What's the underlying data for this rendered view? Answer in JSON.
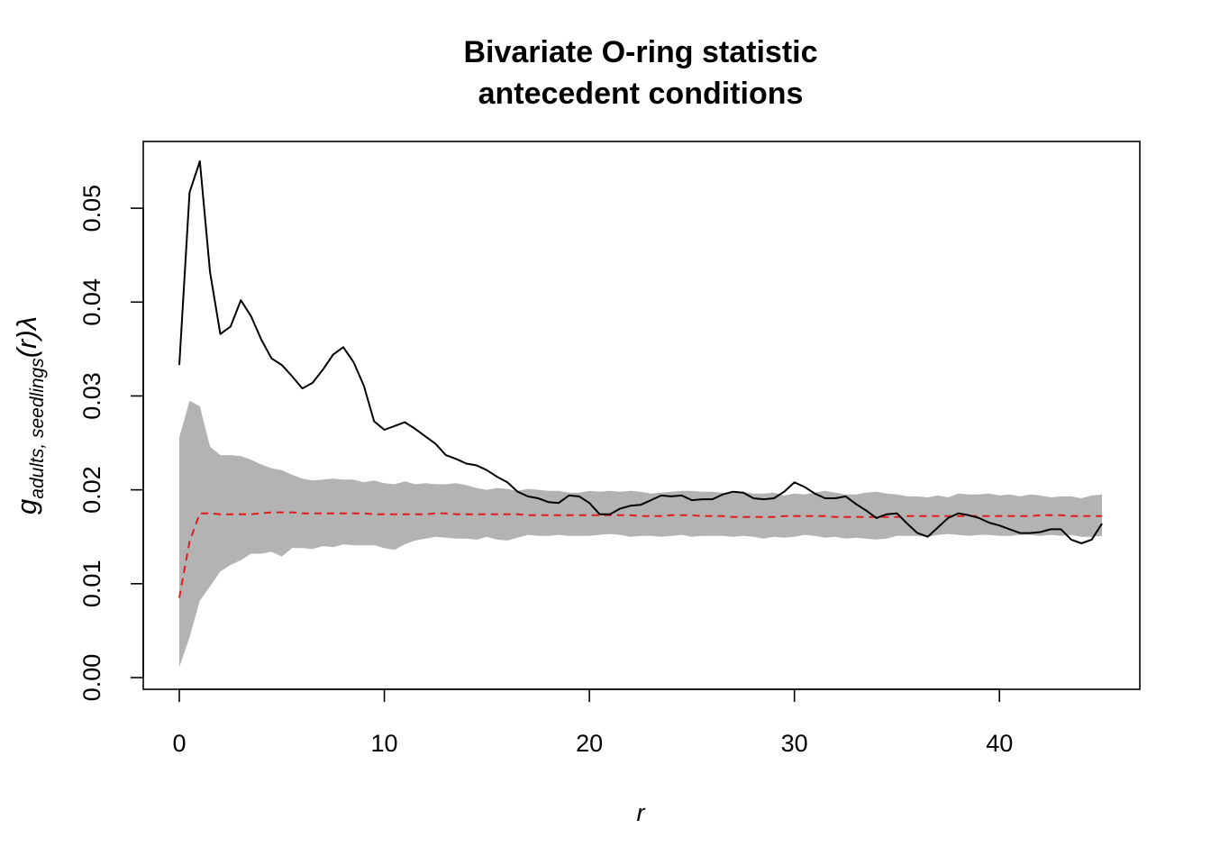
{
  "chart_data": {
    "type": "line",
    "title": [
      "Bivariate O-ring statistic",
      "antecedent conditions"
    ],
    "xlabel": "r",
    "ylabel": {
      "main": "g",
      "subscript": "adults, seedlings",
      "suffix": "(r)λ"
    },
    "xlim": [
      0,
      45
    ],
    "ylim": [
      0,
      0.055
    ],
    "x_ticks": [
      0,
      10,
      20,
      30,
      40
    ],
    "x_tick_labels": [
      "0",
      "10",
      "20",
      "30",
      "40"
    ],
    "y_ticks": [
      0,
      0.01,
      0.02,
      0.03,
      0.04,
      0.05
    ],
    "y_tick_labels": [
      "0.00",
      "0.01",
      "0.02",
      "0.03",
      "0.04",
      "0.05"
    ],
    "grid": false,
    "x": [
      0,
      0.5,
      1,
      1.5,
      2,
      2.5,
      3,
      3.5,
      4,
      4.5,
      5,
      5.5,
      6,
      6.5,
      7,
      7.5,
      8,
      8.5,
      9,
      9.5,
      10,
      10.5,
      11,
      11.5,
      12,
      12.5,
      13,
      13.5,
      14,
      14.5,
      15,
      15.5,
      16,
      16.5,
      17,
      17.5,
      18,
      18.5,
      19,
      19.5,
      20,
      20.5,
      21,
      21.5,
      22,
      22.5,
      23,
      23.5,
      24,
      24.5,
      25,
      25.5,
      26,
      26.5,
      27,
      27.5,
      28,
      28.5,
      29,
      29.5,
      30,
      30.5,
      31,
      31.5,
      32,
      32.5,
      33,
      33.5,
      34,
      34.5,
      35,
      35.5,
      36,
      36.5,
      37,
      37.5,
      38,
      38.5,
      39,
      39.5,
      40,
      40.5,
      41,
      41.5,
      42,
      42.5,
      43,
      43.5,
      44,
      44.5,
      45
    ],
    "series": [
      {
        "role": "observed",
        "color": "#000000",
        "style": "solid",
        "values": [
          0.0333,
          0.0517,
          0.055,
          0.0432,
          0.0366,
          0.0374,
          0.0402,
          0.0385,
          0.036,
          0.034,
          0.0333,
          0.0321,
          0.0308,
          0.0314,
          0.0328,
          0.0344,
          0.0352,
          0.0336,
          0.0311,
          0.0273,
          0.0264,
          0.0268,
          0.0272,
          0.0265,
          0.0257,
          0.0249,
          0.0237,
          0.0233,
          0.0228,
          0.0226,
          0.0221,
          0.0214,
          0.0208,
          0.0198,
          0.0193,
          0.0191,
          0.0187,
          0.0186,
          0.0194,
          0.0193,
          0.0186,
          0.0174,
          0.0174,
          0.018,
          0.0183,
          0.0184,
          0.0189,
          0.0194,
          0.0193,
          0.0194,
          0.0189,
          0.019,
          0.019,
          0.0195,
          0.0198,
          0.0197,
          0.0191,
          0.019,
          0.0191,
          0.0198,
          0.0208,
          0.0203,
          0.0196,
          0.0191,
          0.0191,
          0.0193,
          0.0185,
          0.0178,
          0.017,
          0.0174,
          0.0175,
          0.0164,
          0.0154,
          0.015,
          0.016,
          0.017,
          0.0175,
          0.0173,
          0.017,
          0.0165,
          0.0162,
          0.0158,
          0.0154,
          0.0154,
          0.0155,
          0.0158,
          0.0158,
          0.0147,
          0.0143,
          0.0147,
          0.0164
        ]
      },
      {
        "role": "theoretical",
        "color": "#e41a1c",
        "style": "dashed",
        "values": [
          0.0085,
          0.0145,
          0.0175,
          0.0175,
          0.0174,
          0.0174,
          0.0174,
          0.0174,
          0.0175,
          0.0176,
          0.0176,
          0.0176,
          0.0175,
          0.0175,
          0.0175,
          0.0175,
          0.0175,
          0.0175,
          0.0175,
          0.0174,
          0.0174,
          0.0174,
          0.0174,
          0.0174,
          0.0174,
          0.0175,
          0.0175,
          0.0174,
          0.0174,
          0.0174,
          0.0174,
          0.0174,
          0.0174,
          0.0174,
          0.0173,
          0.0173,
          0.0173,
          0.0173,
          0.0173,
          0.0173,
          0.0173,
          0.0173,
          0.0173,
          0.0173,
          0.0173,
          0.0172,
          0.0172,
          0.0172,
          0.0173,
          0.0173,
          0.0173,
          0.0172,
          0.0172,
          0.0172,
          0.0171,
          0.0171,
          0.0171,
          0.0171,
          0.0171,
          0.0172,
          0.0172,
          0.0172,
          0.0172,
          0.0172,
          0.0171,
          0.0171,
          0.0171,
          0.0171,
          0.0171,
          0.0171,
          0.0171,
          0.0172,
          0.0172,
          0.0172,
          0.0172,
          0.0172,
          0.0172,
          0.0172,
          0.0172,
          0.0172,
          0.0172,
          0.0172,
          0.0172,
          0.0172,
          0.0173,
          0.0173,
          0.0173,
          0.0172,
          0.0172,
          0.0172,
          0.0172
        ]
      }
    ],
    "envelope": {
      "color": "#b3b3b3",
      "upper": [
        0.0256,
        0.0295,
        0.0289,
        0.0246,
        0.0237,
        0.0237,
        0.0236,
        0.0232,
        0.0227,
        0.0223,
        0.0221,
        0.0216,
        0.0212,
        0.021,
        0.0211,
        0.0212,
        0.0211,
        0.0211,
        0.0208,
        0.021,
        0.0207,
        0.0206,
        0.0209,
        0.0206,
        0.0207,
        0.0206,
        0.0206,
        0.0207,
        0.0205,
        0.0202,
        0.02,
        0.0202,
        0.0201,
        0.0199,
        0.0201,
        0.02,
        0.0199,
        0.0199,
        0.0197,
        0.0197,
        0.0199,
        0.0198,
        0.0199,
        0.0198,
        0.0199,
        0.0198,
        0.0196,
        0.0197,
        0.0198,
        0.0199,
        0.0199,
        0.0198,
        0.0198,
        0.0197,
        0.0197,
        0.0198,
        0.0196,
        0.0196,
        0.0197,
        0.0194,
        0.0196,
        0.0195,
        0.0197,
        0.0199,
        0.0197,
        0.0195,
        0.0195,
        0.0197,
        0.0198,
        0.0196,
        0.0195,
        0.0193,
        0.0193,
        0.0192,
        0.0194,
        0.0192,
        0.0196,
        0.0195,
        0.0195,
        0.0196,
        0.0194,
        0.0195,
        0.0193,
        0.0195,
        0.0194,
        0.0192,
        0.0193,
        0.0193,
        0.0191,
        0.0194,
        0.0195
      ],
      "lower": [
        0.0011,
        0.0043,
        0.0082,
        0.0097,
        0.0113,
        0.012,
        0.0125,
        0.0132,
        0.0132,
        0.0134,
        0.0129,
        0.0138,
        0.0138,
        0.0137,
        0.014,
        0.0139,
        0.0142,
        0.0141,
        0.0141,
        0.0141,
        0.0138,
        0.0136,
        0.0142,
        0.0146,
        0.0148,
        0.015,
        0.0149,
        0.0148,
        0.0148,
        0.0147,
        0.015,
        0.0147,
        0.0146,
        0.0149,
        0.0152,
        0.0151,
        0.0151,
        0.0152,
        0.0151,
        0.0151,
        0.0151,
        0.0152,
        0.0153,
        0.0152,
        0.015,
        0.0151,
        0.0151,
        0.015,
        0.0151,
        0.0152,
        0.015,
        0.0151,
        0.0151,
        0.0151,
        0.015,
        0.0151,
        0.015,
        0.0148,
        0.015,
        0.0149,
        0.015,
        0.0152,
        0.0151,
        0.0149,
        0.015,
        0.0148,
        0.0149,
        0.0148,
        0.0147,
        0.0148,
        0.0151,
        0.0151,
        0.0151,
        0.015,
        0.0152,
        0.0153,
        0.0152,
        0.0151,
        0.0152,
        0.0152,
        0.0151,
        0.0151,
        0.0152,
        0.0152,
        0.0151,
        0.0152,
        0.0151,
        0.0152,
        0.015,
        0.015,
        0.0151
      ]
    }
  }
}
